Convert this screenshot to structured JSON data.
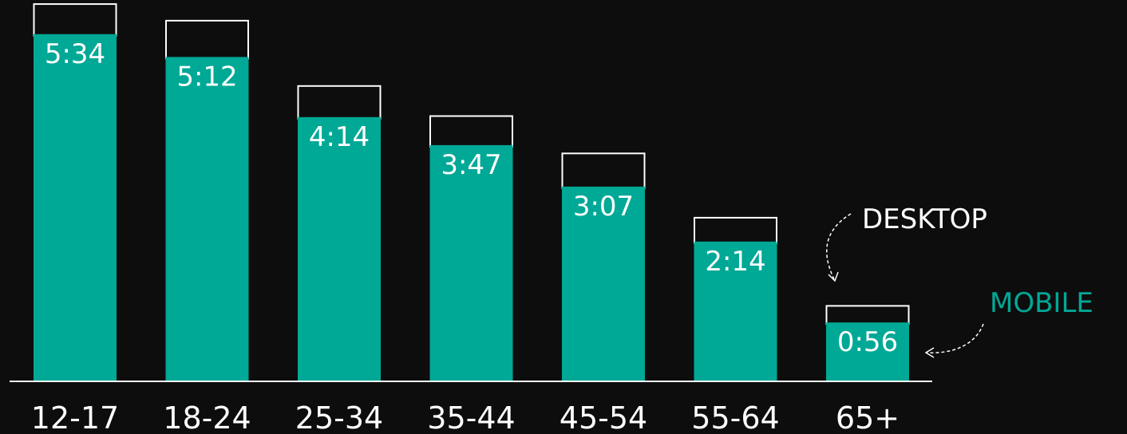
{
  "chart_data": {
    "type": "bar",
    "categories": [
      "12-17",
      "18-24",
      "25-34",
      "35-44",
      "45-54",
      "55-64",
      "65+"
    ],
    "series": [
      {
        "name": "MOBILE",
        "values": [
          "5:34",
          "5:12",
          "4:14",
          "3:47",
          "3:07",
          "2:14",
          "0:56"
        ],
        "minutes": [
          334,
          312,
          254,
          227,
          187,
          134,
          56
        ]
      },
      {
        "name": "DESKTOP",
        "minutes_total": [
          363,
          347,
          284,
          255,
          219,
          157,
          72
        ]
      }
    ],
    "xlabel": "",
    "ylabel": "",
    "colors": {
      "mobile": "#00a896",
      "desktop_outline": "#ffffff",
      "background": "#0d0d0d",
      "axis": "#ffffff"
    },
    "legend": {
      "desktop": "DESKTOP",
      "mobile": "MOBILE"
    },
    "grid": false
  }
}
